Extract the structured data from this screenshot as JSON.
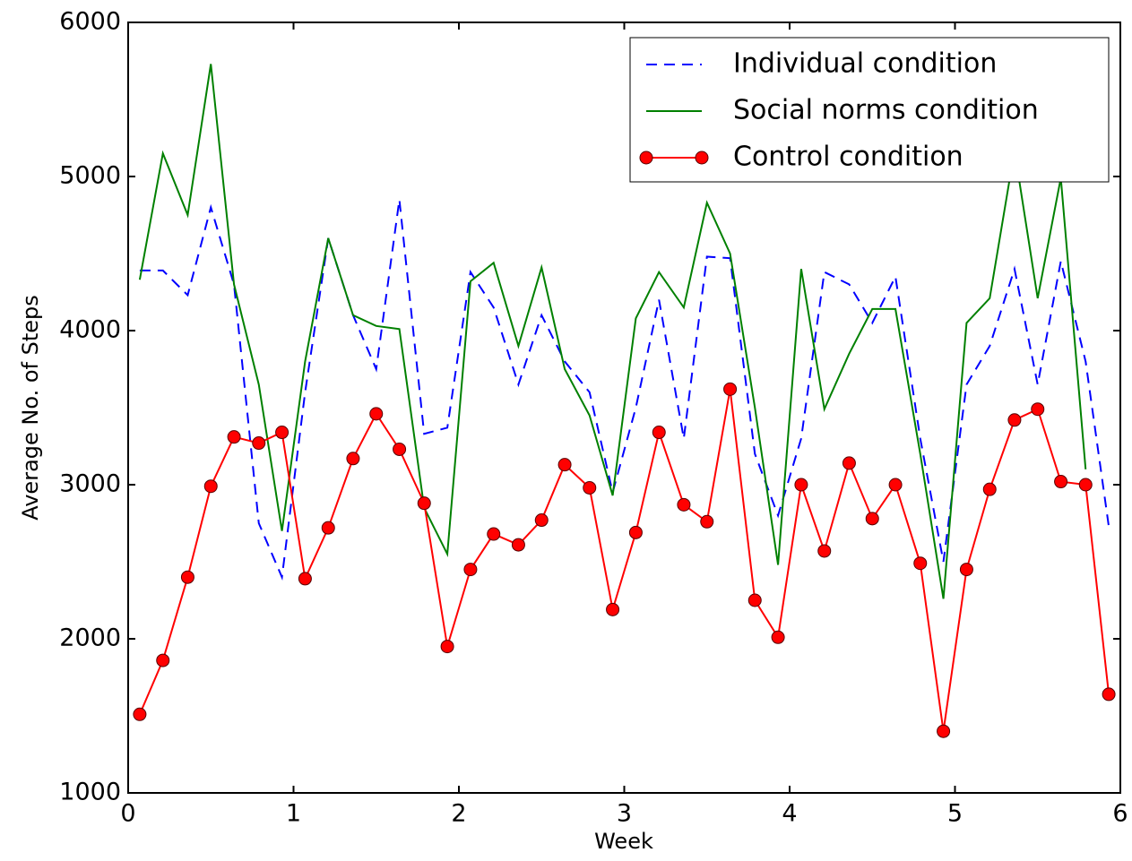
{
  "chart_data": {
    "type": "line",
    "x_label": "Week",
    "y_label": "Average No. of Steps",
    "x": [
      0.07,
      0.21,
      0.36,
      0.5,
      0.64,
      0.79,
      0.93,
      1.07,
      1.21,
      1.36,
      1.5,
      1.64,
      1.79,
      1.93,
      2.07,
      2.21,
      2.36,
      2.5,
      2.64,
      2.79,
      2.93,
      3.07,
      3.21,
      3.36,
      3.5,
      3.64,
      3.79,
      3.93,
      4.07,
      4.21,
      4.36,
      4.5,
      4.64,
      4.79,
      4.93,
      5.07,
      5.21,
      5.36,
      5.5,
      5.64,
      5.79,
      5.93
    ],
    "series": [
      {
        "name": "Individual condition",
        "color": "#0000ff",
        "linestyle": "dashed",
        "marker": false,
        "values": [
          4390,
          4390,
          4230,
          4800,
          4300,
          2750,
          2400,
          3600,
          4600,
          4100,
          3750,
          4850,
          3330,
          3370,
          4380,
          4150,
          3650,
          4100,
          3800,
          3600,
          2950,
          3500,
          4200,
          3300,
          4480,
          4470,
          3200,
          2800,
          3300,
          4380,
          4300,
          4050,
          4350,
          3300,
          2500,
          3650,
          3900,
          4400,
          3650,
          4450,
          3800,
          2730
        ]
      },
      {
        "name": "Social norms condition",
        "color": "#008000",
        "linestyle": "solid",
        "marker": false,
        "values": [
          4330,
          5150,
          4750,
          5730,
          4300,
          3650,
          2700,
          3800,
          4600,
          4100,
          4030,
          4010,
          2850,
          2550,
          4320,
          4440,
          3900,
          4410,
          3750,
          3450,
          2930,
          4080,
          4380,
          4150,
          4830,
          4500,
          3500,
          2480,
          4400,
          3490,
          3850,
          4140,
          4140,
          3200,
          2260,
          4050,
          4210,
          5170,
          4210,
          4990,
          3100,
          null
        ]
      },
      {
        "name": "Control condition",
        "color": "#ff0000",
        "linestyle": "solid",
        "marker": true,
        "values": [
          1510,
          1860,
          2400,
          2990,
          3310,
          3270,
          3340,
          2390,
          2720,
          3170,
          3460,
          3230,
          2880,
          1950,
          2450,
          2680,
          2610,
          2770,
          3130,
          2980,
          2190,
          2690,
          3340,
          2870,
          2760,
          3620,
          2250,
          2010,
          3000,
          2570,
          3140,
          2780,
          3000,
          2490,
          1400,
          2450,
          2970,
          3420,
          3490,
          3020,
          3000,
          1640
        ]
      }
    ],
    "xlim": [
      0,
      6
    ],
    "xticks": [
      0,
      1,
      2,
      3,
      4,
      5,
      6
    ],
    "ylim": [
      1000,
      6000
    ],
    "yticks": [
      1000,
      2000,
      3000,
      4000,
      5000,
      6000
    ],
    "grid": false,
    "legend": "upper right"
  }
}
